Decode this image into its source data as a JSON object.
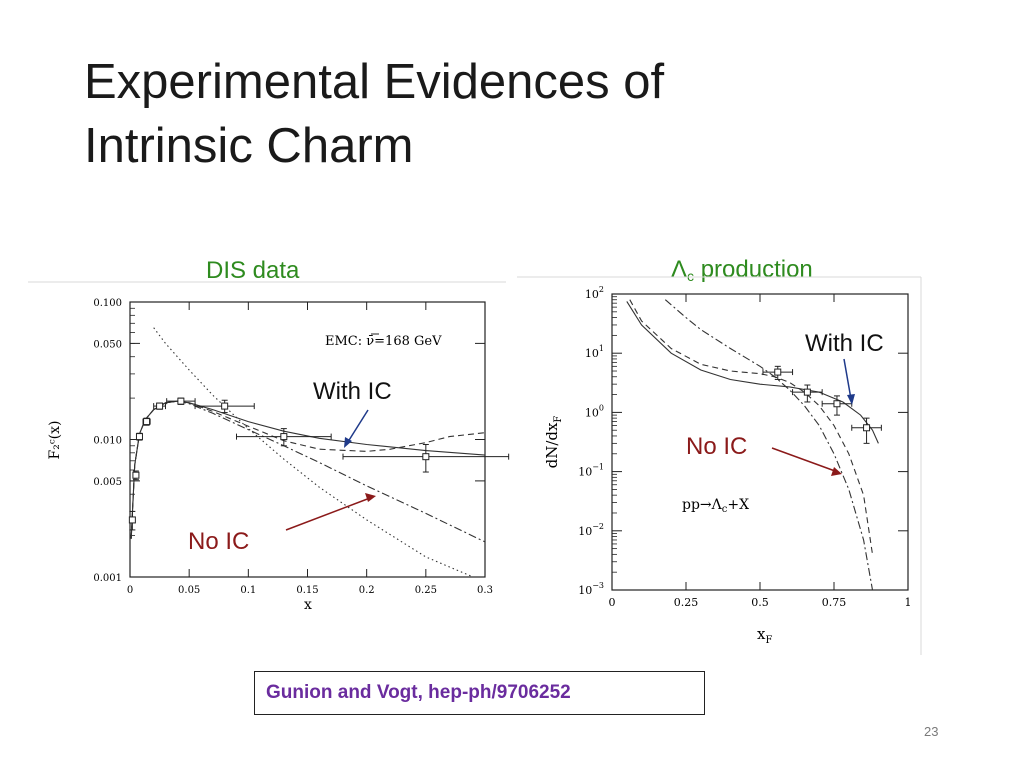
{
  "slide": {
    "title_lines": [
      "Experimental Evidences of",
      "Intrinsic Charm"
    ],
    "caption_left": "DIS data",
    "caption_right_main": "Λ",
    "caption_right_sub": "c",
    "caption_right_tail": " production",
    "citation": "Gunion and Vogt, hep-ph/9706252",
    "slide_number": "23",
    "colors": {
      "caption": "#2e8b1f",
      "citation": "#6a2c9e",
      "annotation_arrow": "#8b1a1a",
      "with_ic_arrow": "#1f3a8a"
    }
  },
  "chart_data": [
    {
      "type": "line",
      "xlabel": "x",
      "ylabel": "F₂ᶜ(x)",
      "xlim": [
        0,
        0.3
      ],
      "ylim": [
        0.001,
        0.1
      ],
      "y_scale": "log",
      "x_ticks": [
        {
          "v": 0,
          "label": "0"
        },
        {
          "v": 0.05,
          "label": "0.05"
        },
        {
          "v": 0.1,
          "label": "0.1"
        },
        {
          "v": 0.15,
          "label": "0.15"
        },
        {
          "v": 0.2,
          "label": "0.2"
        },
        {
          "v": 0.25,
          "label": "0.25"
        },
        {
          "v": 0.3,
          "label": "0.3"
        }
      ],
      "y_ticks": [
        {
          "v": 0.001,
          "label": "0.001"
        },
        {
          "v": 0.005,
          "label": "0.005"
        },
        {
          "v": 0.01,
          "label": "0.010"
        },
        {
          "v": 0.05,
          "label": "0.050"
        },
        {
          "v": 0.1,
          "label": "0.100"
        }
      ],
      "annotation": "EMC: ν̄=168 GeV",
      "labels": {
        "with_ic": "With IC",
        "no_ic": "No IC"
      },
      "series": [
        {
          "style": "solid",
          "x": [
            0.001,
            0.004,
            0.008,
            0.013,
            0.02,
            0.03,
            0.04,
            0.05,
            0.07,
            0.1,
            0.13,
            0.16,
            0.2,
            0.25,
            0.3
          ],
          "y": [
            0.0019,
            0.0065,
            0.011,
            0.014,
            0.0165,
            0.0185,
            0.019,
            0.0185,
            0.0165,
            0.0135,
            0.0115,
            0.0102,
            0.0092,
            0.0083,
            0.0077
          ]
        },
        {
          "style": "dashed",
          "x": [
            0.001,
            0.004,
            0.008,
            0.013,
            0.02,
            0.03,
            0.04,
            0.05,
            0.07,
            0.1,
            0.13,
            0.16,
            0.2,
            0.22,
            0.25,
            0.27,
            0.3
          ],
          "y": [
            0.0019,
            0.0065,
            0.011,
            0.014,
            0.0165,
            0.0185,
            0.019,
            0.0185,
            0.016,
            0.0125,
            0.0098,
            0.0085,
            0.0082,
            0.0085,
            0.0095,
            0.0105,
            0.0112
          ]
        },
        {
          "style": "dashdot",
          "x": [
            0.001,
            0.004,
            0.008,
            0.013,
            0.02,
            0.03,
            0.04,
            0.05,
            0.07,
            0.1,
            0.13,
            0.16,
            0.2,
            0.25,
            0.3
          ],
          "y": [
            0.0019,
            0.0065,
            0.011,
            0.014,
            0.0165,
            0.0185,
            0.019,
            0.0182,
            0.0155,
            0.0118,
            0.009,
            0.0068,
            0.0046,
            0.0029,
            0.0018
          ]
        },
        {
          "style": "dotted",
          "x": [
            0.02,
            0.03,
            0.05,
            0.07,
            0.1,
            0.13,
            0.16,
            0.2,
            0.25,
            0.29
          ],
          "y": [
            0.065,
            0.05,
            0.032,
            0.021,
            0.012,
            0.0072,
            0.0045,
            0.0026,
            0.0014,
            0.001
          ]
        }
      ],
      "points": [
        {
          "x": 0.002,
          "y": 0.0026,
          "xerr": 0.0015,
          "yerr": 0.0004
        },
        {
          "x": 0.005,
          "y": 0.0055,
          "xerr": 0.002,
          "yerr": 0.0004
        },
        {
          "x": 0.008,
          "y": 0.0105,
          "xerr": 0.002,
          "yerr": 0.0006
        },
        {
          "x": 0.014,
          "y": 0.0135,
          "xerr": 0.003,
          "yerr": 0.0008
        },
        {
          "x": 0.025,
          "y": 0.0175,
          "xerr": 0.005,
          "yerr": 0.0009
        },
        {
          "x": 0.043,
          "y": 0.019,
          "xerr": 0.012,
          "yerr": 0.001
        },
        {
          "x": 0.08,
          "y": 0.0175,
          "xerr": 0.025,
          "yerr": 0.0018
        },
        {
          "x": 0.13,
          "y": 0.0105,
          "xerr": 0.04,
          "yerr": 0.0015
        },
        {
          "x": 0.25,
          "y": 0.0075,
          "xerr": 0.07,
          "yerr": 0.0017
        }
      ]
    },
    {
      "type": "line",
      "xlabel": "xF",
      "ylabel": "dN/dxF",
      "xlim": [
        0,
        1
      ],
      "ylim": [
        0.001,
        100
      ],
      "y_scale": "log",
      "x_ticks": [
        {
          "v": 0,
          "label": "0"
        },
        {
          "v": 0.25,
          "label": "0.25"
        },
        {
          "v": 0.5,
          "label": "0.5"
        },
        {
          "v": 0.75,
          "label": "0.75"
        },
        {
          "v": 1,
          "label": "1"
        }
      ],
      "y_ticks": [
        {
          "v": 100,
          "exp": "2"
        },
        {
          "v": 10,
          "exp": "1"
        },
        {
          "v": 1,
          "exp": "0"
        },
        {
          "v": 0.1,
          "exp": "−1"
        },
        {
          "v": 0.01,
          "exp": "−2"
        },
        {
          "v": 0.001,
          "exp": "−3"
        }
      ],
      "annotation": "pp→Λc+X",
      "labels": {
        "with_ic": "With IC",
        "no_ic": "No IC"
      },
      "series": [
        {
          "style": "solid",
          "x": [
            0.05,
            0.1,
            0.2,
            0.3,
            0.4,
            0.5,
            0.6,
            0.7,
            0.78,
            0.84,
            0.88,
            0.9
          ],
          "y": [
            75,
            30,
            10,
            5.2,
            3.6,
            3.0,
            2.7,
            2.2,
            1.5,
            0.9,
            0.5,
            0.3
          ]
        },
        {
          "style": "dashed",
          "x": [
            0.06,
            0.1,
            0.2,
            0.3,
            0.4,
            0.5,
            0.55,
            0.6,
            0.65,
            0.7,
            0.75,
            0.8,
            0.85,
            0.88
          ],
          "y": [
            80,
            35,
            12,
            6.5,
            5.0,
            4.5,
            4.0,
            3.2,
            2.2,
            1.3,
            0.6,
            0.2,
            0.04,
            0.004
          ]
        },
        {
          "style": "dashdot",
          "x": [
            0.18,
            0.25,
            0.3,
            0.4,
            0.5,
            0.55,
            0.6,
            0.65,
            0.7,
            0.75,
            0.8,
            0.85,
            0.88
          ],
          "y": [
            80,
            40,
            25,
            12,
            6,
            4,
            2.4,
            1.3,
            0.6,
            0.2,
            0.05,
            0.007,
            0.001
          ]
        }
      ],
      "points": [
        {
          "x": 0.56,
          "y": 4.8,
          "xerr": 0.05,
          "yerr": 1.2
        },
        {
          "x": 0.66,
          "y": 2.2,
          "xerr": 0.05,
          "yerr": 0.7
        },
        {
          "x": 0.76,
          "y": 1.4,
          "xerr": 0.05,
          "yerr": 0.5
        },
        {
          "x": 0.86,
          "y": 0.55,
          "xerr": 0.05,
          "yerr": 0.25
        }
      ]
    }
  ]
}
